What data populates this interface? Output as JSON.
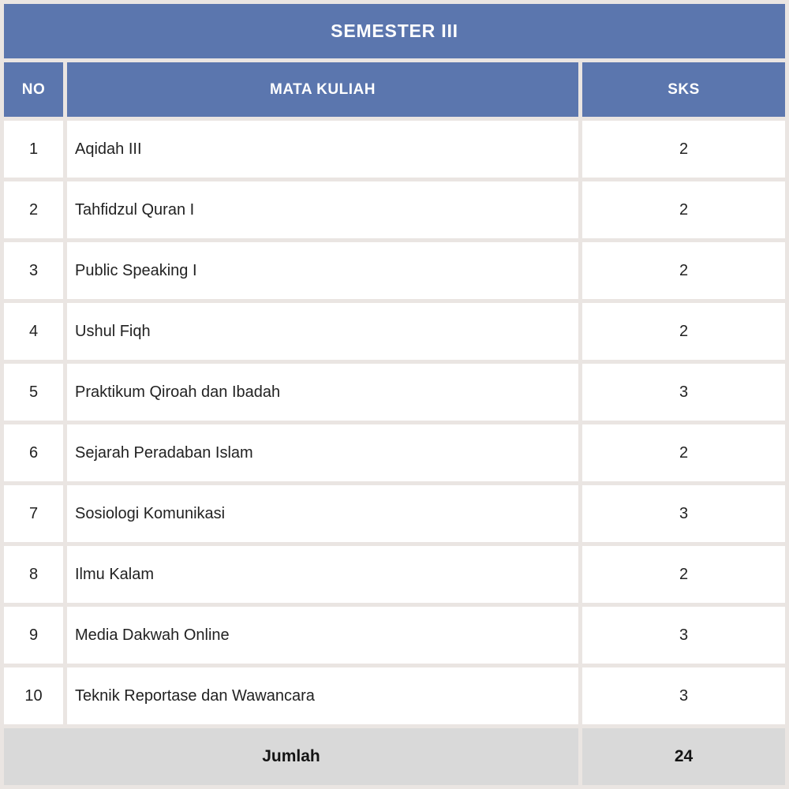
{
  "table": {
    "title": "SEMESTER III",
    "columns": [
      "NO",
      "MATA KULIAH",
      "SKS"
    ],
    "rows": [
      {
        "no": "1",
        "course": "Aqidah III",
        "sks": "2"
      },
      {
        "no": "2",
        "course": "Tahfidzul Quran I",
        "sks": "2"
      },
      {
        "no": "3",
        "course": "Public Speaking I",
        "sks": "2"
      },
      {
        "no": "4",
        "course": "Ushul Fiqh",
        "sks": "2"
      },
      {
        "no": "5",
        "course": "Praktikum Qiroah dan Ibadah",
        "sks": "3"
      },
      {
        "no": "6",
        "course": "Sejarah Peradaban Islam",
        "sks": "2"
      },
      {
        "no": "7",
        "course": "Sosiologi Komunikasi",
        "sks": "3"
      },
      {
        "no": "8",
        "course": "Ilmu Kalam",
        "sks": "2"
      },
      {
        "no": "9",
        "course": "Media Dakwah Online",
        "sks": "3"
      },
      {
        "no": "10",
        "course": "Teknik Reportase dan Wawancara",
        "sks": "3"
      }
    ],
    "footer": {
      "label": "Jumlah",
      "total": "24"
    }
  },
  "chart_data": {
    "type": "table",
    "title": "SEMESTER III",
    "columns": [
      "NO",
      "MATA KULIAH",
      "SKS"
    ],
    "rows": [
      [
        "1",
        "Aqidah III",
        2
      ],
      [
        "2",
        "Tahfidzul Quran I",
        2
      ],
      [
        "3",
        "Public Speaking I",
        2
      ],
      [
        "4",
        "Ushul Fiqh",
        2
      ],
      [
        "5",
        "Praktikum Qiroah dan Ibadah",
        3
      ],
      [
        "6",
        "Sejarah Peradaban Islam",
        2
      ],
      [
        "7",
        "Sosiologi Komunikasi",
        3
      ],
      [
        "8",
        "Ilmu Kalam",
        2
      ],
      [
        "9",
        "Media Dakwah Online",
        3
      ],
      [
        "10",
        "Teknik Reportase dan Wawancara",
        3
      ]
    ],
    "total_row": [
      "Jumlah",
      24
    ]
  },
  "colors": {
    "header_blue": "#5b76ae",
    "footer_gray": "#d9d9d9",
    "grid": "#eae5e2",
    "header_text": "#ffffff",
    "body_text": "#222222"
  }
}
